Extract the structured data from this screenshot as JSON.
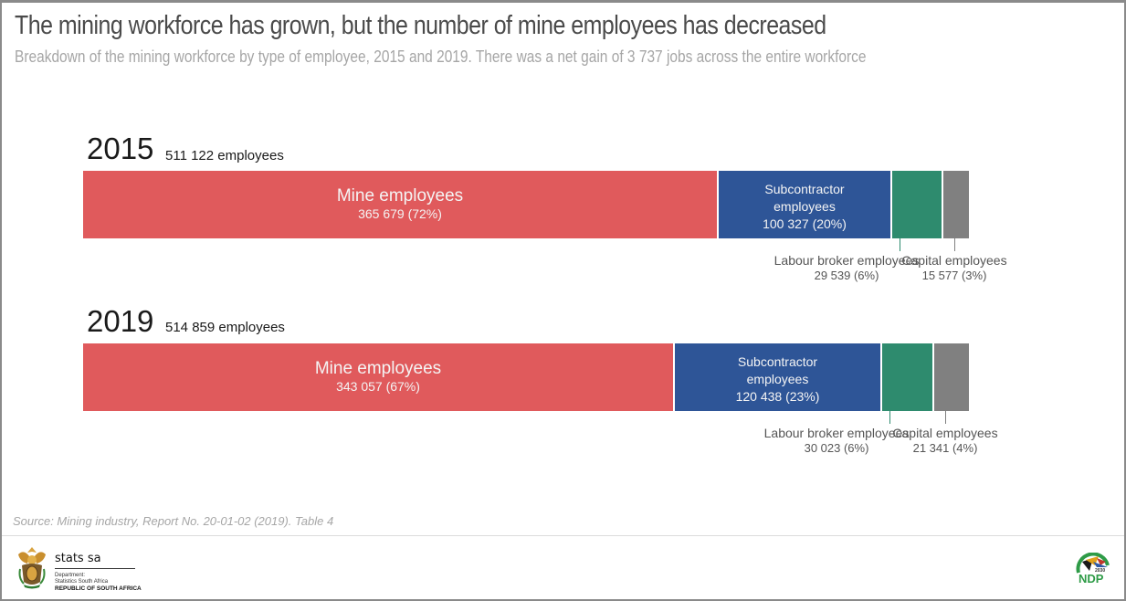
{
  "header": {
    "title": "The mining workforce has grown, but the number of mine employees has decreased",
    "subtitle": "Breakdown of the mining workforce by type of employee, 2015 and 2019. There was a net gain of 3 737 jobs across the entire workforce"
  },
  "colors": {
    "mine": "#e05a5c",
    "subcontractor": "#2e5597",
    "labour_broker": "#2e8b6e",
    "capital": "#808080",
    "leader_line": "#2e8b6e"
  },
  "chart_data": {
    "type": "bar",
    "orientation": "horizontal-stacked-100",
    "title": "The mining workforce has grown, but the number of mine employees has decreased",
    "subtitle": "Breakdown of the mining workforce by type of employee, 2015 and 2019. There was a net gain of 3 737 jobs across the entire workforce",
    "categories": [
      "2015",
      "2019"
    ],
    "totals": [
      511122,
      514859
    ],
    "total_labels": [
      "511 122 employees",
      "514 859 employees"
    ],
    "series": [
      {
        "name": "Mine employees",
        "values": [
          365679,
          343057
        ],
        "value_labels": [
          "365 679 (72%)",
          "343 057 (67%)"
        ],
        "percent": [
          72,
          67
        ],
        "color": "#e05a5c"
      },
      {
        "name": "Subcontractor employees",
        "name_lines": [
          "Subcontractor",
          "employees"
        ],
        "values": [
          100327,
          120438
        ],
        "value_labels": [
          "100 327 (20%)",
          "120 438 (23%)"
        ],
        "percent": [
          20,
          23
        ],
        "color": "#2e5597"
      },
      {
        "name": "Labour broker employees",
        "values": [
          29539,
          30023
        ],
        "value_labels": [
          "29 539 (6%)",
          "30 023 (6%)"
        ],
        "percent": [
          6,
          6
        ],
        "color": "#2e8b6e"
      },
      {
        "name": "Capital employees",
        "values": [
          15577,
          21341
        ],
        "value_labels": [
          "15 577 (3%)",
          "21 341 (4%)"
        ],
        "percent": [
          3,
          4
        ],
        "color": "#808080"
      }
    ],
    "xlabel": "",
    "ylabel": "",
    "grid": false,
    "legend": "inline-labels"
  },
  "footer": {
    "source": "Source: Mining industry, Report No. 20-01-02 (2019). Table 4",
    "org_name": "stats sa",
    "dept_line1": "Department:",
    "dept_line2": "Statistics South Africa",
    "dept_line3": "REPUBLIC OF SOUTH AFRICA",
    "right_logo_text": "NDP",
    "right_logo_year": "2030"
  }
}
